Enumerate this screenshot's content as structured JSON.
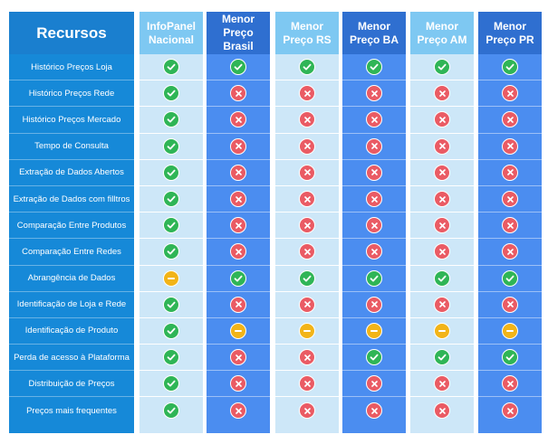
{
  "header": {
    "title": "Recursos"
  },
  "columns": [
    {
      "name": "InfoPanel\nNacional",
      "style": "light"
    },
    {
      "name": "Menor Preço\nBrasil",
      "style": "dark"
    },
    {
      "name": "Menor\nPreço RS",
      "style": "light"
    },
    {
      "name": "Menor\nPreço BA",
      "style": "dark"
    },
    {
      "name": "Menor\nPreço AM",
      "style": "light"
    },
    {
      "name": "Menor\nPreço PR",
      "style": "dark"
    }
  ],
  "rows": [
    {
      "label": "Histórico Preços Loja",
      "values": [
        "check",
        "check",
        "check",
        "check",
        "check",
        "check"
      ]
    },
    {
      "label": "Histórico Preços Rede",
      "values": [
        "check",
        "cross",
        "cross",
        "cross",
        "cross",
        "cross"
      ]
    },
    {
      "label": "Histórico Preços Mercado",
      "values": [
        "check",
        "cross",
        "cross",
        "cross",
        "cross",
        "cross"
      ]
    },
    {
      "label": "Tempo de Consulta",
      "values": [
        "check",
        "cross",
        "cross",
        "cross",
        "cross",
        "cross"
      ]
    },
    {
      "label": "Extração de Dados Abertos",
      "values": [
        "check",
        "cross",
        "cross",
        "cross",
        "cross",
        "cross"
      ]
    },
    {
      "label": "Extração de Dados com filltros",
      "values": [
        "check",
        "cross",
        "cross",
        "cross",
        "cross",
        "cross"
      ]
    },
    {
      "label": "Comparação Entre Produtos",
      "values": [
        "check",
        "cross",
        "cross",
        "cross",
        "cross",
        "cross"
      ]
    },
    {
      "label": "Comparação Entre Redes",
      "values": [
        "check",
        "cross",
        "cross",
        "cross",
        "cross",
        "cross"
      ]
    },
    {
      "label": "Abrangência de Dados",
      "values": [
        "partial",
        "check",
        "check",
        "check",
        "check",
        "check"
      ]
    },
    {
      "label": "Identificação de Loja e Rede",
      "values": [
        "check",
        "cross",
        "cross",
        "cross",
        "cross",
        "cross"
      ]
    },
    {
      "label": "Identificação de Produto",
      "values": [
        "check",
        "partial",
        "partial",
        "partial",
        "partial",
        "partial"
      ]
    },
    {
      "label": "Perda de acesso à Plataforma",
      "values": [
        "check",
        "cross",
        "cross",
        "check",
        "check",
        "check"
      ]
    },
    {
      "label": "Distribuição de Preços",
      "values": [
        "check",
        "cross",
        "cross",
        "cross",
        "cross",
        "cross"
      ]
    },
    {
      "label": "Preços mais frequentes",
      "values": [
        "check",
        "cross",
        "cross",
        "cross",
        "cross",
        "cross"
      ]
    }
  ],
  "icons": {
    "check": "check-icon",
    "cross": "cross-icon",
    "partial": "partial-icon"
  },
  "colors": {
    "check": "#2fb556",
    "cross": "#ea5b64",
    "partial": "#f2b418",
    "label_bg": "#1689d8"
  }
}
